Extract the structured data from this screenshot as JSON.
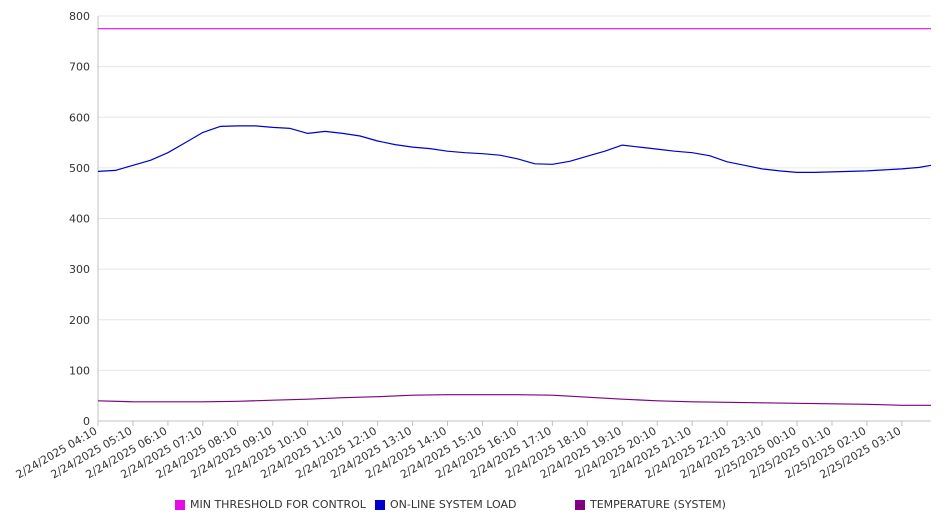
{
  "chart_data": {
    "type": "line",
    "title": "",
    "xlabel": "",
    "ylabel": "",
    "ylim": [
      0,
      800
    ],
    "yticks": [
      0,
      100,
      200,
      300,
      400,
      500,
      600,
      700,
      800
    ],
    "grid": true,
    "legend_position": "bottom",
    "x_tick_labels": [
      "2/24/2025 04:10",
      "2/24/2025 05:10",
      "2/24/2025 06:10",
      "2/24/2025 07:10",
      "2/24/2025 08:10",
      "2/24/2025 09:10",
      "2/24/2025 10:10",
      "2/24/2025 11:10",
      "2/24/2025 12:10",
      "2/24/2025 13:10",
      "2/24/2025 14:10",
      "2/24/2025 15:10",
      "2/24/2025 16:10",
      "2/24/2025 17:10",
      "2/24/2025 18:10",
      "2/24/2025 19:10",
      "2/24/2025 20:10",
      "2/24/2025 21:10",
      "2/24/2025 22:10",
      "2/24/2025 23:10",
      "2/25/2025 00:10",
      "2/25/2025 01:10",
      "2/25/2025 02:10",
      "2/25/2025 03:10"
    ],
    "x_range": [
      "2/24/2025 04:10",
      "2/25/2025 04:00"
    ],
    "series": [
      {
        "name": "MIN THRESHOLD FOR CONTROL",
        "color": "#e60ce6",
        "x": [
          "2/24/2025 04:10",
          "2/25/2025 04:00"
        ],
        "values": [
          775,
          775
        ]
      },
      {
        "name": "ON-LINE SYSTEM LOAD",
        "color": "#0000cc",
        "x": [
          "2/24/2025 04:10",
          "2/24/2025 04:40",
          "2/24/2025 05:10",
          "2/24/2025 05:40",
          "2/24/2025 06:10",
          "2/24/2025 06:40",
          "2/24/2025 07:10",
          "2/24/2025 07:40",
          "2/24/2025 08:10",
          "2/24/2025 08:40",
          "2/24/2025 09:10",
          "2/24/2025 09:40",
          "2/24/2025 10:10",
          "2/24/2025 10:40",
          "2/24/2025 11:10",
          "2/24/2025 11:40",
          "2/24/2025 12:10",
          "2/24/2025 12:40",
          "2/24/2025 13:10",
          "2/24/2025 13:40",
          "2/24/2025 14:10",
          "2/24/2025 14:40",
          "2/24/2025 15:10",
          "2/24/2025 15:40",
          "2/24/2025 16:10",
          "2/24/2025 16:40",
          "2/24/2025 17:10",
          "2/24/2025 17:40",
          "2/24/2025 18:10",
          "2/24/2025 18:40",
          "2/24/2025 19:10",
          "2/24/2025 19:40",
          "2/24/2025 20:10",
          "2/24/2025 20:40",
          "2/24/2025 21:10",
          "2/24/2025 21:40",
          "2/24/2025 22:10",
          "2/24/2025 22:40",
          "2/24/2025 23:10",
          "2/24/2025 23:40",
          "2/25/2025 00:10",
          "2/25/2025 00:40",
          "2/25/2025 01:10",
          "2/25/2025 01:40",
          "2/25/2025 02:10",
          "2/25/2025 02:40",
          "2/25/2025 03:10",
          "2/25/2025 03:40",
          "2/25/2025 04:00"
        ],
        "values": [
          493,
          495,
          505,
          515,
          530,
          550,
          570,
          582,
          583,
          583,
          580,
          578,
          568,
          572,
          568,
          563,
          553,
          546,
          541,
          538,
          533,
          530,
          528,
          525,
          518,
          508,
          507,
          513,
          523,
          533,
          545,
          541,
          537,
          533,
          530,
          524,
          512,
          505,
          498,
          494,
          491,
          491,
          492,
          493,
          494,
          496,
          498,
          501,
          505
        ]
      },
      {
        "name": "TEMPERATURE (SYSTEM)",
        "color": "#800080",
        "x": [
          "2/24/2025 04:10",
          "2/24/2025 05:10",
          "2/24/2025 06:10",
          "2/24/2025 07:10",
          "2/24/2025 08:10",
          "2/24/2025 09:10",
          "2/24/2025 10:10",
          "2/24/2025 11:10",
          "2/24/2025 12:10",
          "2/24/2025 13:10",
          "2/24/2025 14:10",
          "2/24/2025 15:10",
          "2/24/2025 16:10",
          "2/24/2025 17:10",
          "2/24/2025 18:10",
          "2/24/2025 19:10",
          "2/24/2025 20:10",
          "2/24/2025 21:10",
          "2/24/2025 22:10",
          "2/24/2025 23:10",
          "2/25/2025 00:10",
          "2/25/2025 01:10",
          "2/25/2025 02:10",
          "2/25/2025 03:10",
          "2/25/2025 04:00"
        ],
        "values": [
          40,
          38,
          38,
          38,
          39,
          41,
          43,
          46,
          48,
          51,
          52,
          52,
          52,
          51,
          47,
          43,
          40,
          38,
          37,
          36,
          35,
          34,
          33,
          31,
          31
        ]
      }
    ]
  }
}
